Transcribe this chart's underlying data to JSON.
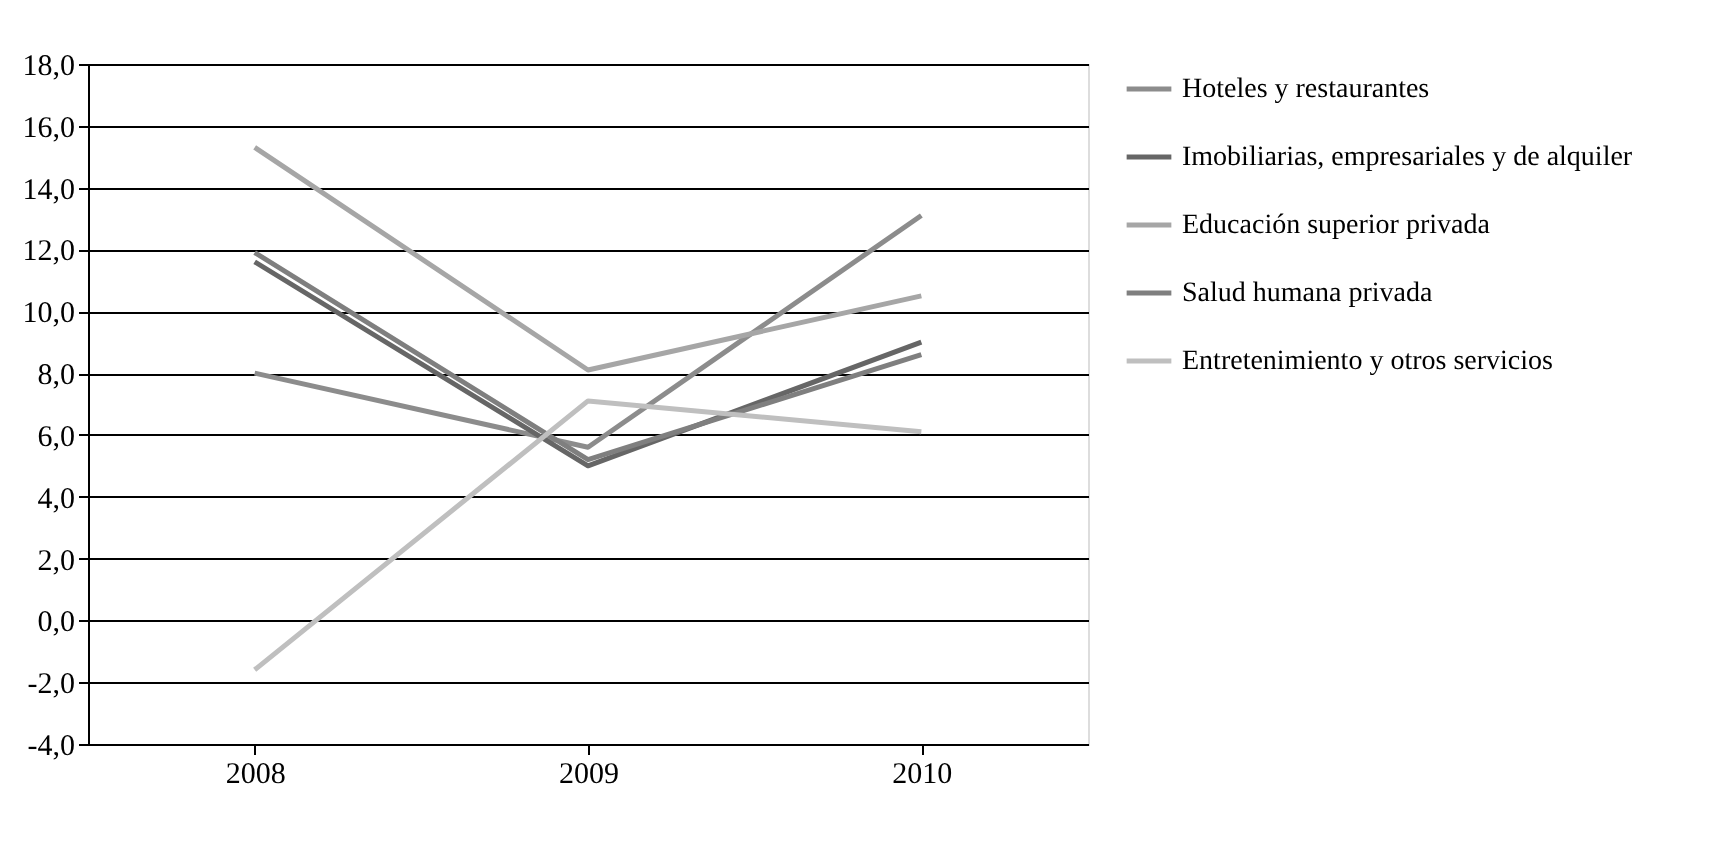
{
  "chart_data": {
    "type": "line",
    "categories": [
      "2008",
      "2009",
      "2010"
    ],
    "series": [
      {
        "name": "Hoteles y restaurantes",
        "color": "#8c8c8c",
        "values": [
          8.0,
          5.6,
          13.1
        ]
      },
      {
        "name": "Imobiliarias, empresariales y de alquiler",
        "color": "#666666",
        "values": [
          11.6,
          5.0,
          9.0
        ]
      },
      {
        "name": "Educación superior privada",
        "color": "#a6a6a6",
        "values": [
          15.3,
          8.1,
          10.5
        ]
      },
      {
        "name": "Salud humana privada",
        "color": "#7f7f7f",
        "values": [
          11.9,
          5.2,
          8.6
        ]
      },
      {
        "name": "Entretenimiento y otros servicios",
        "color": "#bfbfbf",
        "values": [
          -1.6,
          7.1,
          6.1
        ]
      }
    ],
    "ylim": [
      -4,
      18
    ],
    "yticks": [
      {
        "value": -4,
        "label": "-4,0"
      },
      {
        "value": -2,
        "label": "-2,0"
      },
      {
        "value": 0,
        "label": "0,0"
      },
      {
        "value": 2,
        "label": "2,0"
      },
      {
        "value": 4,
        "label": "4,0"
      },
      {
        "value": 6,
        "label": "6,0"
      },
      {
        "value": 8,
        "label": "8,0"
      },
      {
        "value": 10,
        "label": "10,0"
      },
      {
        "value": 12,
        "label": "12,0"
      },
      {
        "value": 14,
        "label": "14,0"
      },
      {
        "value": 16,
        "label": "16,0"
      },
      {
        "value": 18,
        "label": "18,0"
      }
    ],
    "grid": "y",
    "legend": "right",
    "marker": "none",
    "line_style": "solid"
  }
}
